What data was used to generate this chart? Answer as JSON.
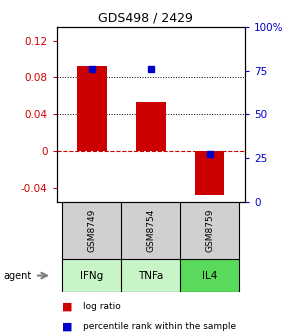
{
  "title": "GDS498 / 2429",
  "bars": [
    {
      "x": 0,
      "log_ratio": 0.093,
      "percentile": 76
    },
    {
      "x": 1,
      "log_ratio": 0.053,
      "percentile": 76
    },
    {
      "x": 2,
      "log_ratio": -0.048,
      "percentile": 27
    }
  ],
  "sample_labels": [
    "GSM8749",
    "GSM8754",
    "GSM8759"
  ],
  "agent_labels": [
    "IFNg",
    "TNFa",
    "IL4"
  ],
  "agent_colors": [
    "#c8f5c8",
    "#c8f5c8",
    "#5ada5a"
  ],
  "sample_bg": "#d0d0d0",
  "ylim": [
    -0.055,
    0.135
  ],
  "left_yticks": [
    -0.04,
    0.0,
    0.04,
    0.08,
    0.12
  ],
  "right_yticks": [
    0,
    25,
    50,
    75,
    100
  ],
  "left_color": "#cc0000",
  "right_color": "#0000cc",
  "bar_color": "#cc0000",
  "dot_color": "#0000cc",
  "bar_width": 0.5,
  "hlines_dotted": [
    0.04,
    0.08
  ],
  "legend_items": [
    {
      "color": "#cc0000",
      "label": "log ratio"
    },
    {
      "color": "#0000cc",
      "label": "percentile rank within the sample"
    }
  ]
}
